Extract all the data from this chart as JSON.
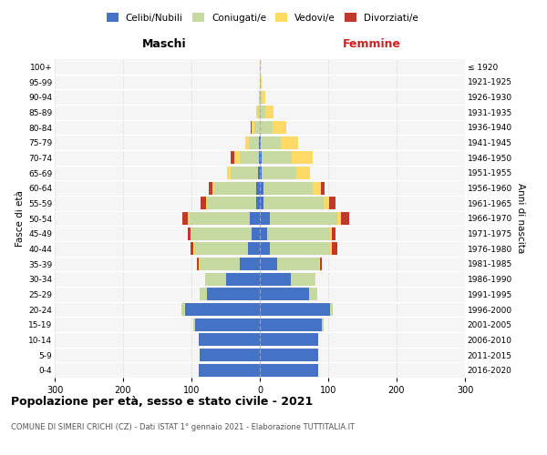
{
  "age_groups": [
    "0-4",
    "5-9",
    "10-14",
    "15-19",
    "20-24",
    "25-29",
    "30-34",
    "35-39",
    "40-44",
    "45-49",
    "50-54",
    "55-59",
    "60-64",
    "65-69",
    "70-74",
    "75-79",
    "80-84",
    "85-89",
    "90-94",
    "95-99",
    "100+"
  ],
  "birth_years": [
    "2016-2020",
    "2011-2015",
    "2006-2010",
    "2001-2005",
    "1996-2000",
    "1991-1995",
    "1986-1990",
    "1981-1985",
    "1976-1980",
    "1971-1975",
    "1966-1970",
    "1961-1965",
    "1956-1960",
    "1951-1955",
    "1946-1950",
    "1941-1945",
    "1936-1940",
    "1931-1935",
    "1926-1930",
    "1921-1925",
    "≤ 1920"
  ],
  "colors": {
    "celibi": "#4472C4",
    "coniugati": "#c5d9a0",
    "vedovi": "#FFD966",
    "divorziati": "#C0392B"
  },
  "maschi": {
    "celibi": [
      90,
      88,
      90,
      95,
      110,
      78,
      50,
      30,
      18,
      12,
      15,
      5,
      5,
      3,
      2,
      1,
      0,
      0,
      0,
      0,
      0
    ],
    "coniugati": [
      0,
      0,
      0,
      2,
      5,
      10,
      30,
      58,
      78,
      88,
      88,
      72,
      62,
      40,
      28,
      15,
      8,
      3,
      1,
      0,
      0
    ],
    "vedovi": [
      0,
      0,
      0,
      0,
      0,
      0,
      0,
      1,
      1,
      1,
      2,
      2,
      3,
      5,
      8,
      5,
      4,
      2,
      1,
      0,
      0
    ],
    "divorziati": [
      0,
      0,
      0,
      0,
      0,
      0,
      0,
      3,
      5,
      5,
      8,
      8,
      5,
      0,
      5,
      0,
      2,
      0,
      0,
      0,
      0
    ]
  },
  "femmine": {
    "celibi": [
      85,
      85,
      85,
      90,
      102,
      72,
      45,
      25,
      15,
      10,
      15,
      5,
      5,
      3,
      2,
      1,
      0,
      0,
      0,
      0,
      0
    ],
    "coniugati": [
      0,
      0,
      0,
      3,
      5,
      12,
      35,
      62,
      88,
      92,
      98,
      88,
      72,
      50,
      45,
      30,
      18,
      8,
      3,
      1,
      0
    ],
    "vedovi": [
      0,
      0,
      0,
      0,
      0,
      0,
      1,
      1,
      2,
      3,
      5,
      8,
      12,
      20,
      30,
      25,
      20,
      12,
      5,
      1,
      1
    ],
    "divorziati": [
      0,
      0,
      0,
      0,
      0,
      0,
      0,
      3,
      8,
      5,
      12,
      10,
      5,
      0,
      0,
      0,
      0,
      0,
      0,
      0,
      0
    ]
  },
  "xlim": 300,
  "title": "Popolazione per età, sesso e stato civile - 2021",
  "subtitle": "COMUNE DI SIMERI CRICHI (CZ) - Dati ISTAT 1° gennaio 2021 - Elaborazione TUTTITALIA.IT",
  "xlabel_left": "Maschi",
  "xlabel_right": "Femmine",
  "ylabel_left": "Fasce di età",
  "ylabel_right": "Anni di nascita",
  "legend_labels": [
    "Celibi/Nubili",
    "Coniugati/e",
    "Vedovi/e",
    "Divorziati/e"
  ],
  "bg_color": "#f5f5f5"
}
